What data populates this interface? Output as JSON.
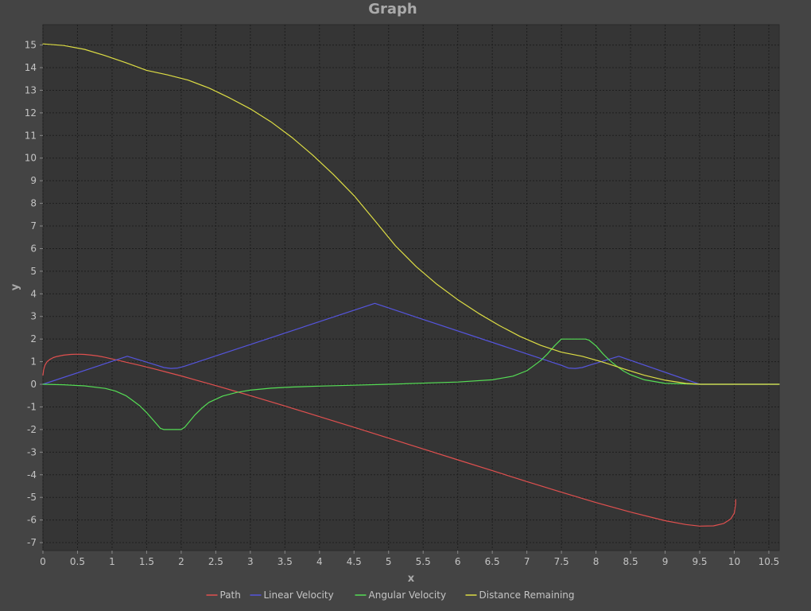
{
  "chart_data": {
    "type": "line",
    "title": "Graph",
    "xlabel": "x",
    "ylabel": "y",
    "xlim": [
      0,
      10.65
    ],
    "ylim": [
      -7.35,
      15.9
    ],
    "x_ticks": [
      0,
      0.5,
      1,
      1.5,
      2,
      2.5,
      3,
      3.5,
      4,
      4.5,
      5,
      5.5,
      6,
      6.5,
      7,
      7.5,
      8,
      8.5,
      9,
      9.5,
      10,
      10.5
    ],
    "x_tick_labels": [
      "0",
      "0.5",
      "1",
      "1.5",
      "2",
      "2.5",
      "3",
      "3.5",
      "4",
      "4.5",
      "5",
      "5.5",
      "6",
      "6.5",
      "7",
      "7.5",
      "8",
      "8.5",
      "9",
      "9.5",
      "10",
      "10.5"
    ],
    "y_ticks": [
      -7,
      -6,
      -5,
      -4,
      -3,
      -2,
      -1,
      0,
      1,
      2,
      3,
      4,
      5,
      6,
      7,
      8,
      9,
      10,
      11,
      12,
      13,
      14,
      15
    ],
    "y_tick_labels": [
      "-7",
      "-6",
      "-5",
      "-4",
      "-3",
      "-2",
      "-1",
      "0",
      "1",
      "2",
      "3",
      "4",
      "5",
      "6",
      "7",
      "8",
      "9",
      "10",
      "11",
      "12",
      "13",
      "14",
      "15"
    ],
    "grid": true,
    "legend_position": "bottom",
    "colors": {
      "background": "#444444",
      "plot_background": "#353535",
      "grid": "#1e1e1e",
      "text": "#c4c4c4",
      "title": "#aaaaaa"
    },
    "series": [
      {
        "name": "Path",
        "color": "#e0504f",
        "x": [
          0,
          0.01,
          0.03,
          0.06,
          0.1,
          0.15,
          0.2,
          0.3,
          0.4,
          0.5,
          0.6,
          0.7,
          0.8,
          0.9,
          1.0,
          1.2,
          1.4,
          1.6,
          1.8,
          2.0,
          2.2,
          2.5,
          2.75,
          3.0,
          3.5,
          4.0,
          4.5,
          5.0,
          5.5,
          6.0,
          6.5,
          7.0,
          7.5,
          8.0,
          8.5,
          9.0,
          9.3,
          9.5,
          9.7,
          9.85,
          9.95,
          10.0,
          10.02,
          10.02
        ],
        "y": [
          0.4,
          0.65,
          0.85,
          1.0,
          1.1,
          1.18,
          1.23,
          1.29,
          1.32,
          1.33,
          1.32,
          1.29,
          1.25,
          1.19,
          1.12,
          0.98,
          0.84,
          0.69,
          0.53,
          0.37,
          0.2,
          -0.06,
          -0.28,
          -0.5,
          -0.96,
          -1.43,
          -1.9,
          -2.38,
          -2.86,
          -3.34,
          -3.82,
          -4.3,
          -4.77,
          -5.23,
          -5.65,
          -6.03,
          -6.2,
          -6.27,
          -6.26,
          -6.15,
          -5.95,
          -5.7,
          -5.3,
          -5.1
        ]
      },
      {
        "name": "Linear Velocity",
        "color": "#5555dd",
        "x": [
          0,
          1.22,
          1.65,
          1.75,
          1.85,
          1.95,
          2.05,
          4.8,
          7.5,
          7.6,
          7.7,
          7.8,
          7.9,
          8.33,
          9.5,
          10.65
        ],
        "y": [
          0,
          1.24,
          0.84,
          0.74,
          0.7,
          0.72,
          0.8,
          3.58,
          0.84,
          0.72,
          0.7,
          0.74,
          0.84,
          1.24,
          0,
          0
        ]
      },
      {
        "name": "Angular Velocity",
        "color": "#55dd55",
        "x": [
          0,
          0.3,
          0.6,
          0.9,
          1.05,
          1.2,
          1.3,
          1.4,
          1.5,
          1.6,
          1.7,
          1.75,
          1.8,
          1.9,
          1.95,
          2.0,
          2.05,
          2.1,
          2.2,
          2.3,
          2.4,
          2.6,
          2.8,
          3.0,
          3.3,
          3.6,
          4.0,
          5.0,
          6.0,
          6.5,
          6.8,
          7.0,
          7.1,
          7.2,
          7.3,
          7.4,
          7.5,
          7.55,
          7.6,
          7.7,
          7.8,
          7.85,
          7.9,
          8.0,
          8.1,
          8.2,
          8.3,
          8.4,
          8.5,
          8.7,
          9.0,
          9.5,
          10.65
        ],
        "y": [
          0,
          -0.02,
          -0.07,
          -0.18,
          -0.3,
          -0.5,
          -0.72,
          -0.95,
          -1.25,
          -1.6,
          -1.95,
          -2.0,
          -2.0,
          -2.0,
          -2.0,
          -2.0,
          -1.9,
          -1.72,
          -1.35,
          -1.05,
          -0.8,
          -0.52,
          -0.36,
          -0.26,
          -0.17,
          -0.12,
          -0.08,
          0.0,
          0.1,
          0.2,
          0.36,
          0.6,
          0.82,
          1.05,
          1.35,
          1.7,
          2.0,
          2.0,
          2.0,
          2.0,
          2.0,
          2.0,
          1.95,
          1.7,
          1.35,
          1.05,
          0.8,
          0.58,
          0.42,
          0.2,
          0.04,
          0,
          0
        ]
      },
      {
        "name": "Distance Remaining",
        "color": "#dddd44",
        "x": [
          0,
          0.3,
          0.6,
          0.9,
          1.2,
          1.5,
          1.8,
          2.1,
          2.4,
          2.7,
          3.0,
          3.3,
          3.6,
          3.9,
          4.2,
          4.5,
          4.8,
          5.1,
          5.4,
          5.7,
          6.0,
          6.3,
          6.6,
          6.9,
          7.2,
          7.5,
          7.8,
          8.1,
          8.4,
          8.7,
          9.0,
          9.3,
          9.5,
          10.65
        ],
        "y": [
          15.05,
          14.98,
          14.81,
          14.53,
          14.22,
          13.88,
          13.68,
          13.45,
          13.1,
          12.66,
          12.18,
          11.6,
          10.92,
          10.14,
          9.28,
          8.34,
          7.24,
          6.12,
          5.2,
          4.42,
          3.74,
          3.14,
          2.6,
          2.12,
          1.72,
          1.42,
          1.24,
          0.98,
          0.68,
          0.4,
          0.18,
          0.04,
          0,
          0
        ]
      }
    ]
  }
}
